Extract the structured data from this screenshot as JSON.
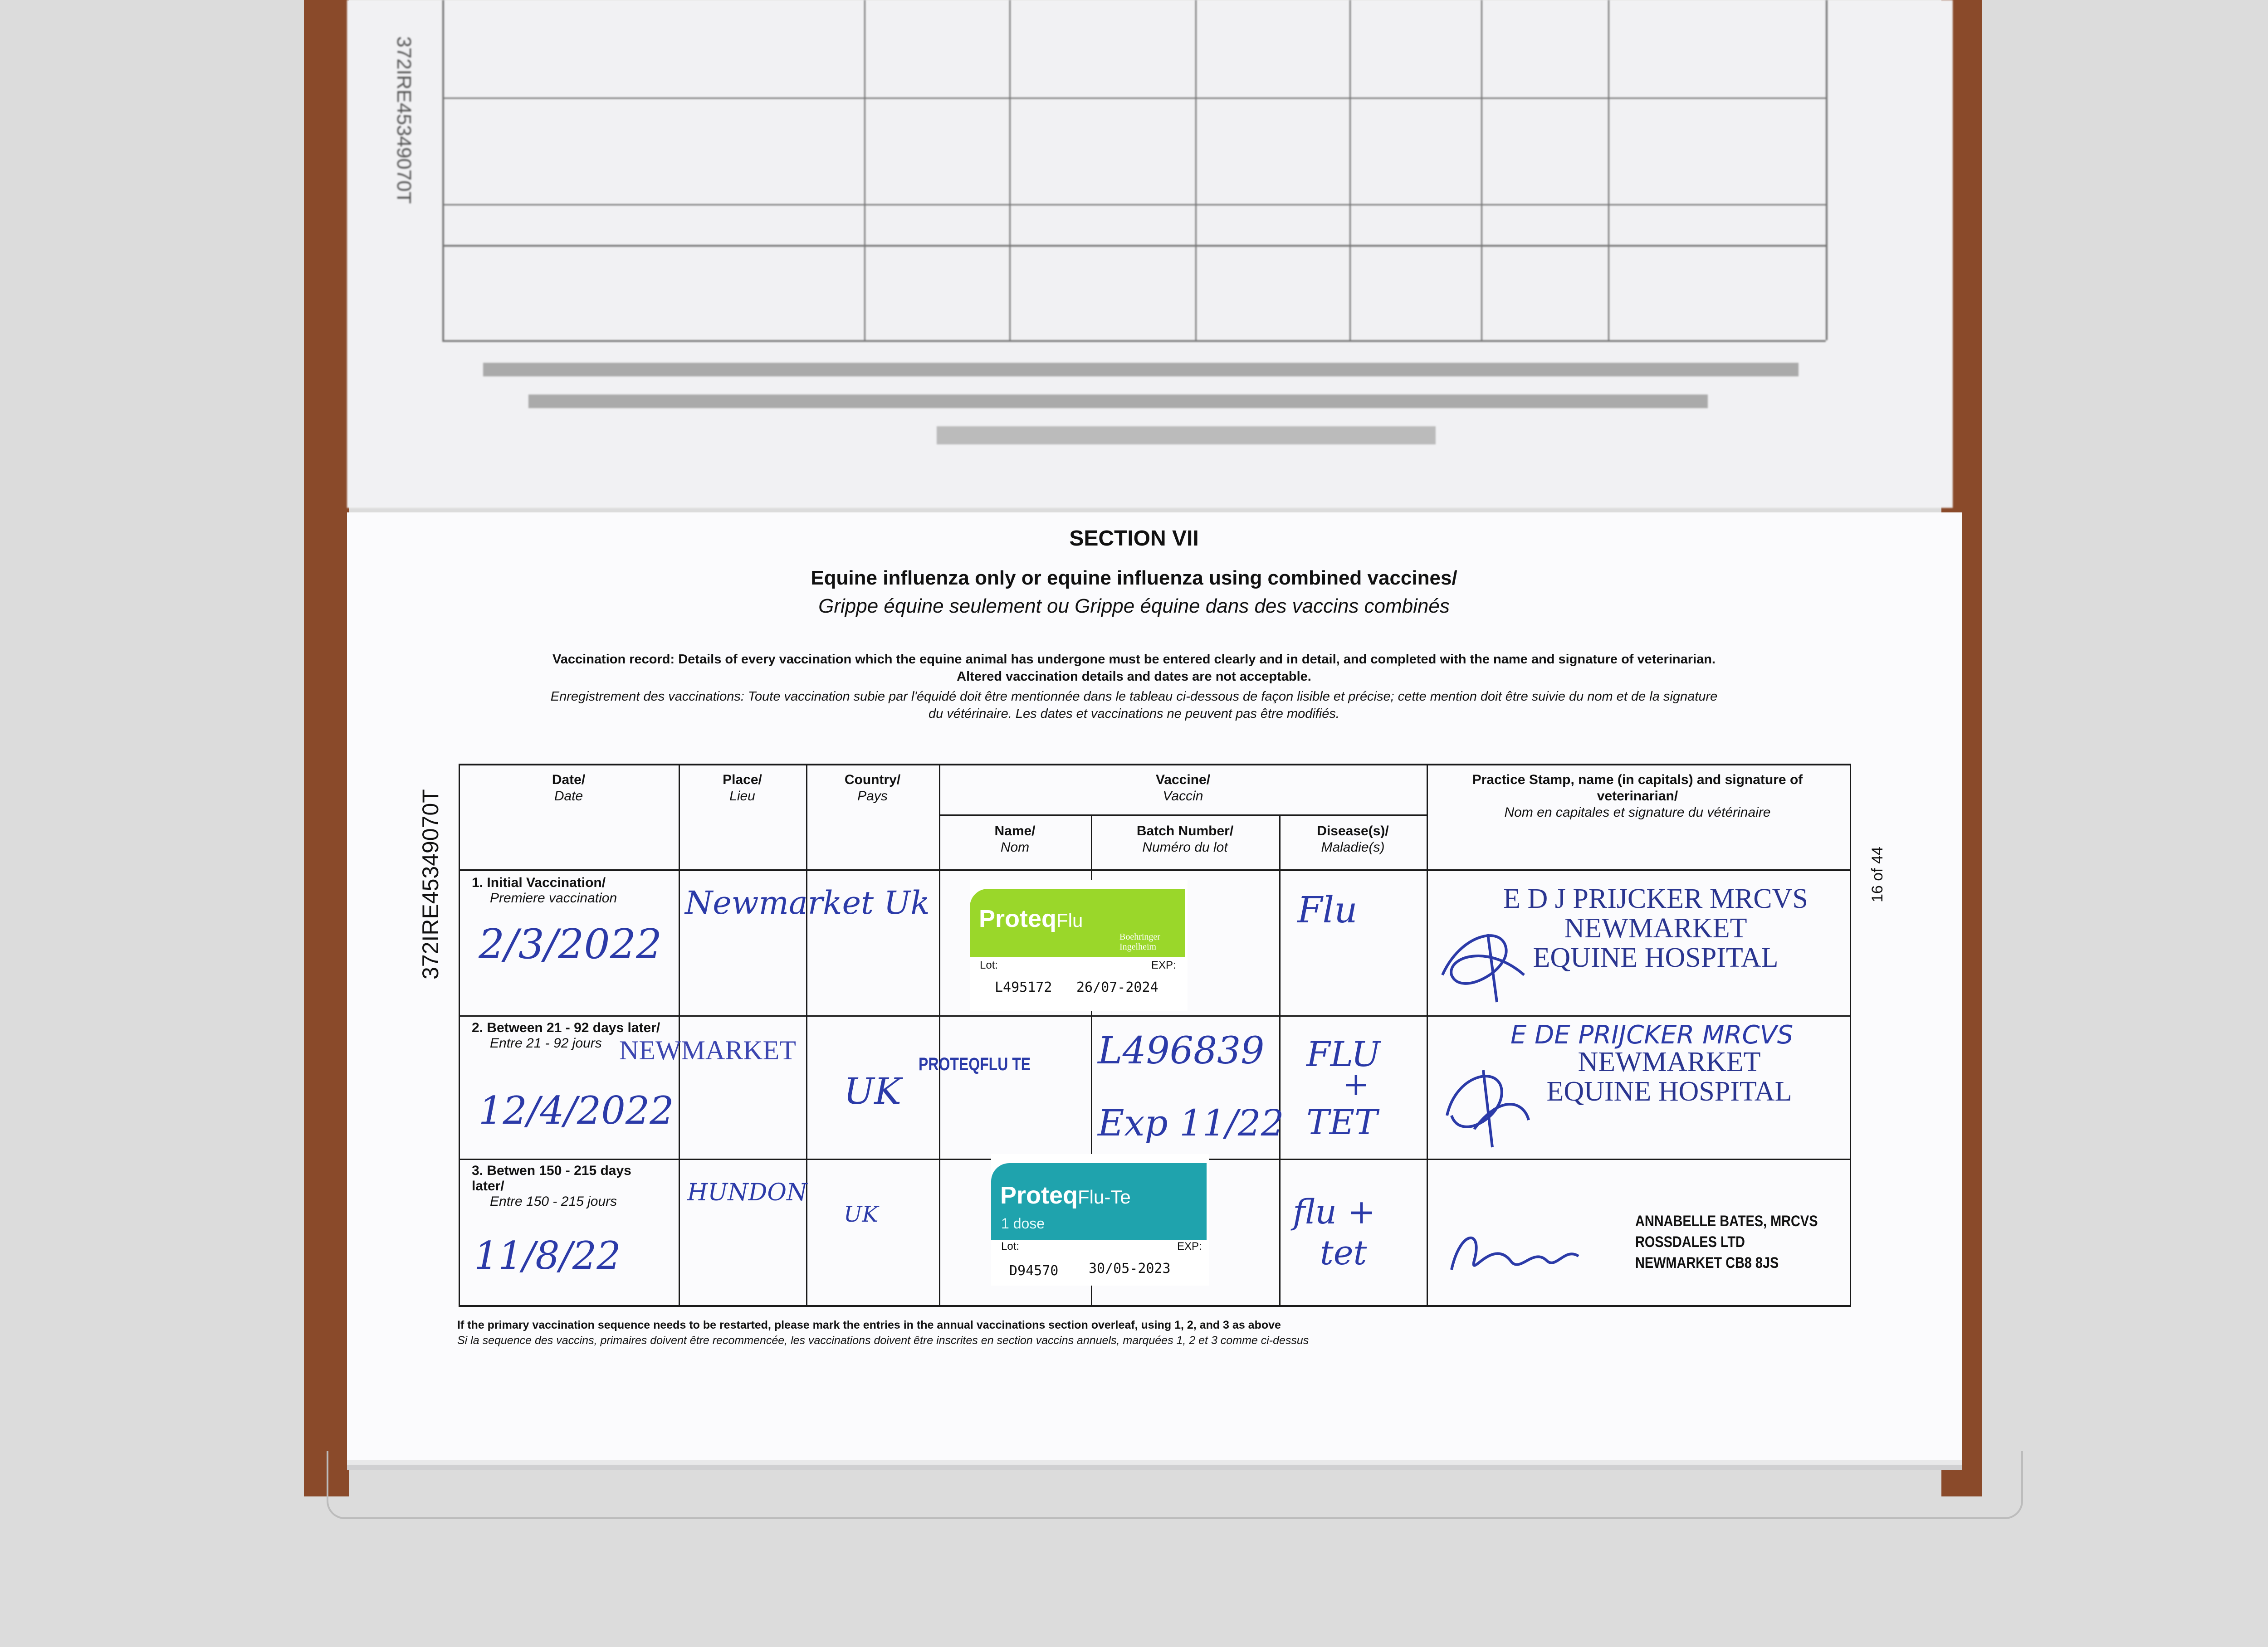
{
  "passport_number": "372IRE45349070T",
  "page_number": "16 of 44",
  "section": "SECTION VII",
  "title_en": "Equine influenza only or equine influenza using combined vaccines/",
  "title_fr": "Grippe équine seulement ou Grippe équine dans des vaccins combinés",
  "intro_en_1": "Vaccination record: Details of every vaccination which the equine animal has undergone must be entered clearly and in detail, and completed with the name and signature of veterinarian.",
  "intro_en_2": "Altered vaccination details and dates are not acceptable.",
  "intro_fr_1": "Enregistrement des vaccinations: Toute vaccination subie par l'équidé doit être mentionnée dans le tableau ci-dessous de façon lisible et précise; cette mention doit être suivie du nom et de la signature",
  "intro_fr_2": "du vétérinaire. Les dates et vaccinations ne peuvent pas être modifiés.",
  "headers": {
    "date": "Date/",
    "date_fr": "Date",
    "place": "Place/",
    "place_fr": "Lieu",
    "country": "Country/",
    "country_fr": "Pays",
    "vaccine": "Vaccine/",
    "vaccine_fr": "Vaccin",
    "name": "Name/",
    "name_fr": "Nom",
    "batch": "Batch Number/",
    "batch_fr": "Numéro du lot",
    "disease": "Disease(s)/",
    "disease_fr": "Maladie(s)",
    "stamp": "Practice Stamp, name (in capitals) and signature of veterinarian/",
    "stamp_fr": "Nom en capitales et signature du vétérinaire"
  },
  "rows": [
    {
      "label": "1. Initial Vaccination/",
      "label_fr": "Premiere vaccination",
      "date": "2/3/2022",
      "place": "Newmarket Uk",
      "sticker": {
        "brand": "Proteq",
        "product": "Flu",
        "maker_1": "Boehringer",
        "maker_2": "Ingelheim",
        "lot_label": "Lot:",
        "exp_label": "EXP:",
        "lot": "L495172",
        "exp": "26/07-2024",
        "color": "#9ad72a"
      },
      "disease": "Flu",
      "stamp": [
        "E D J PRIJCKER MRCVS",
        "NEWMARKET",
        "EQUINE HOSPITAL"
      ]
    },
    {
      "label": "2. Between 21 - 92 days later/",
      "label_fr": "Entre 21 - 92 jours",
      "date": "12/4/2022",
      "place": "NEWMARKET",
      "country": "UK",
      "name": "PROTEQFLU TE",
      "batch": "L496839",
      "batch_exp": "Exp 11/22",
      "disease_1": "FLU",
      "disease_2": "+",
      "disease_3": "TET",
      "stamp_hand": "E DE PRIJCKER MRCVS",
      "stamp": [
        "NEWMARKET",
        "EQUINE HOSPITAL"
      ]
    },
    {
      "label": "3. Betwen 150 - 215 days later/",
      "label_fr": "Entre 150 - 215 jours",
      "date": "11/8/22",
      "place": "HUNDON",
      "country": "UK",
      "sticker": {
        "brand": "Proteq",
        "product": "Flu-Te",
        "dose": "1 dose",
        "lot_label": "Lot:",
        "exp_label": "EXP:",
        "lot": "D94570",
        "exp": "30/05-2023",
        "color": "#1fa3ad"
      },
      "disease_1": "flu +",
      "disease_2": "tet",
      "stamp": [
        "ANNABELLE BATES, MRCVS",
        "ROSSDALES LTD",
        "NEWMARKET CB8 8JS"
      ]
    }
  ],
  "footnote_en": "If the primary vaccination sequence needs to be restarted, please mark the entries in the annual vaccinations section overleaf, using 1, 2, and 3 as above",
  "footnote_fr": "Si la sequence des vaccins, primaires doivent être recommencée, les vaccinations doivent être inscrites en section vaccins annuels, marquées 1, 2 et 3 comme ci-dessus",
  "colors": {
    "ink": "#2b3aa8",
    "stamp": "#2a3590",
    "cover": "#8a4a2a"
  }
}
